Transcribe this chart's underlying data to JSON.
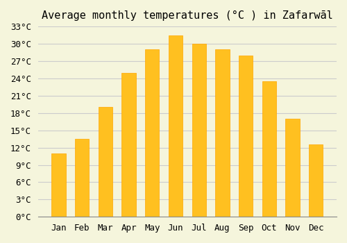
{
  "title": "Average monthly temperatures (°C ) in Zafarwāl",
  "months": [
    "Jan",
    "Feb",
    "Mar",
    "Apr",
    "May",
    "Jun",
    "Jul",
    "Aug",
    "Sep",
    "Oct",
    "Nov",
    "Dec"
  ],
  "temperatures": [
    11,
    13.5,
    19,
    25,
    29,
    31.5,
    30,
    29,
    28,
    23.5,
    17,
    12.5
  ],
  "bar_color": "#FFC020",
  "bar_edge_color": "#FFA500",
  "background_color": "#F5F5DC",
  "grid_color": "#CCCCCC",
  "ylim": [
    0,
    33
  ],
  "yticks": [
    0,
    3,
    6,
    9,
    12,
    15,
    18,
    21,
    24,
    27,
    30,
    33
  ],
  "ylabel_suffix": "°C",
  "title_fontsize": 11,
  "tick_fontsize": 9
}
